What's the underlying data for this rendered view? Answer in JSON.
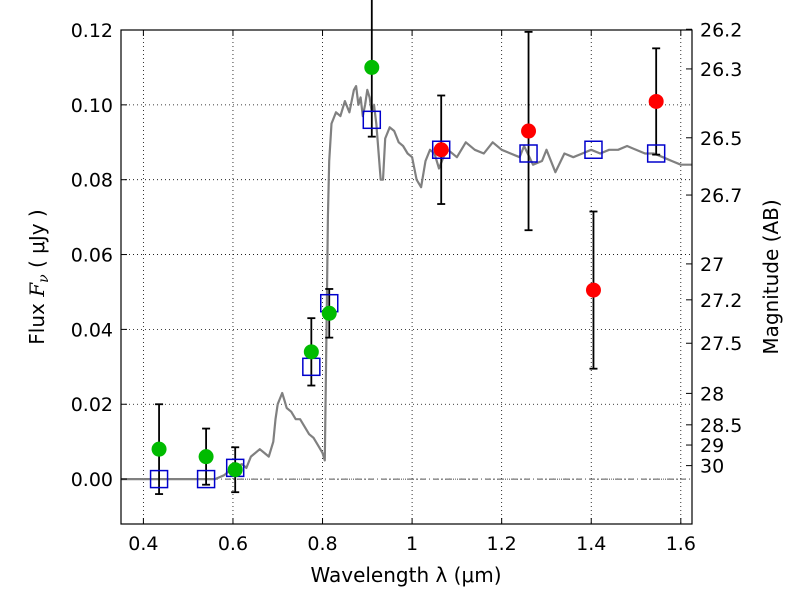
{
  "chart_data": {
    "type": "scatter",
    "xlabel": "Wavelength  λ (μm)",
    "ylabel_prefix": "Flux  ",
    "ylabel_symbol": "F",
    "ylabel_subscript": "ν",
    "ylabel_suffix": "  ( μJy )",
    "ylabel_right": "Magnitude (AB)",
    "xlim": [
      0.35,
      1.625
    ],
    "ylim": [
      -0.012,
      0.12
    ],
    "x_ticks": [
      0.4,
      0.6,
      0.8,
      1.0,
      1.2,
      1.4,
      1.6
    ],
    "x_tick_labels": [
      "0.4",
      "0.6",
      "0.8",
      "1",
      "1.2",
      "1.4",
      "1.6"
    ],
    "y_ticks": [
      0.0,
      0.02,
      0.04,
      0.06,
      0.08,
      0.1,
      0.12
    ],
    "y_tick_labels": [
      "0.00",
      "0.02",
      "0.04",
      "0.06",
      "0.08",
      "0.10",
      "0.12"
    ],
    "right_ticks": [
      {
        "label": "26.2",
        "flux": 0.1202
      },
      {
        "label": "26.3",
        "flux": 0.1096
      },
      {
        "label": "26.5",
        "flux": 0.0912
      },
      {
        "label": "26.7",
        "flux": 0.0759
      },
      {
        "label": "27",
        "flux": 0.0575
      },
      {
        "label": "27.2",
        "flux": 0.0479
      },
      {
        "label": "27.5",
        "flux": 0.0363
      },
      {
        "label": "28",
        "flux": 0.0229
      },
      {
        "label": "28.5",
        "flux": 0.0145
      },
      {
        "label": "29",
        "flux": 0.0091
      },
      {
        "label": "30",
        "flux": 0.0036
      }
    ],
    "grid": true,
    "zero_line": true,
    "series": [
      {
        "name": "model-spectrum",
        "kind": "line",
        "color": "#808080",
        "x": [
          0.35,
          0.56,
          0.58,
          0.6,
          0.62,
          0.63,
          0.64,
          0.66,
          0.67,
          0.68,
          0.69,
          0.695,
          0.7,
          0.71,
          0.715,
          0.72,
          0.73,
          0.74,
          0.75,
          0.76,
          0.77,
          0.78,
          0.79,
          0.8,
          0.805,
          0.81,
          0.812,
          0.815,
          0.82,
          0.83,
          0.84,
          0.85,
          0.86,
          0.87,
          0.875,
          0.88,
          0.885,
          0.89,
          0.895,
          0.9,
          0.905,
          0.91,
          0.915,
          0.92,
          0.93,
          0.935,
          0.94,
          0.95,
          0.96,
          0.97,
          0.98,
          0.99,
          1.0,
          1.01,
          1.02,
          1.03,
          1.04,
          1.05,
          1.06,
          1.07,
          1.08,
          1.1,
          1.12,
          1.14,
          1.16,
          1.18,
          1.2,
          1.22,
          1.24,
          1.25,
          1.27,
          1.29,
          1.3,
          1.32,
          1.34,
          1.36,
          1.38,
          1.4,
          1.42,
          1.44,
          1.46,
          1.48,
          1.5,
          1.52,
          1.54,
          1.56,
          1.58,
          1.6,
          1.625
        ],
        "y": [
          0.0,
          0.0,
          0.001,
          0.003,
          0.004,
          0.003,
          0.006,
          0.008,
          0.007,
          0.006,
          0.01,
          0.016,
          0.02,
          0.023,
          0.021,
          0.019,
          0.018,
          0.016,
          0.016,
          0.014,
          0.012,
          0.011,
          0.009,
          0.007,
          0.005,
          0.05,
          0.07,
          0.085,
          0.095,
          0.098,
          0.097,
          0.101,
          0.098,
          0.104,
          0.105,
          0.1,
          0.102,
          0.097,
          0.1,
          0.104,
          0.102,
          0.098,
          0.1,
          0.095,
          0.08,
          0.08,
          0.091,
          0.094,
          0.093,
          0.09,
          0.089,
          0.087,
          0.086,
          0.08,
          0.078,
          0.085,
          0.088,
          0.087,
          0.083,
          0.086,
          0.088,
          0.086,
          0.09,
          0.088,
          0.087,
          0.09,
          0.088,
          0.087,
          0.086,
          0.089,
          0.084,
          0.085,
          0.088,
          0.082,
          0.087,
          0.086,
          0.087,
          0.088,
          0.087,
          0.088,
          0.088,
          0.089,
          0.088,
          0.087,
          0.087,
          0.086,
          0.085,
          0.084,
          0.084
        ]
      },
      {
        "name": "green-photometry",
        "kind": "scatter",
        "color": "#00bb00",
        "points": [
          {
            "x": 0.435,
            "y": 0.008,
            "err": 0.012
          },
          {
            "x": 0.54,
            "y": 0.006,
            "err": 0.0075
          },
          {
            "x": 0.605,
            "y": 0.0025,
            "err": 0.006
          },
          {
            "x": 0.775,
            "y": 0.034,
            "err": 0.009
          },
          {
            "x": 0.815,
            "y": 0.0443,
            "err": 0.0065
          },
          {
            "x": 0.91,
            "y": 0.11,
            "err": 0.0185
          }
        ]
      },
      {
        "name": "red-photometry",
        "kind": "scatter",
        "color": "#ff0000",
        "points": [
          {
            "x": 1.065,
            "y": 0.088,
            "err": 0.0145
          },
          {
            "x": 1.26,
            "y": 0.093,
            "err": 0.0265
          },
          {
            "x": 1.405,
            "y": 0.0505,
            "err": 0.021
          },
          {
            "x": 1.545,
            "y": 0.1009,
            "err": 0.0142
          }
        ]
      },
      {
        "name": "blue-model-squares",
        "kind": "scatter",
        "color": "#0000cc",
        "points": [
          {
            "x": 0.435,
            "y": 0.0
          },
          {
            "x": 0.54,
            "y": 0.0
          },
          {
            "x": 0.605,
            "y": 0.003
          },
          {
            "x": 0.775,
            "y": 0.03
          },
          {
            "x": 0.815,
            "y": 0.047
          },
          {
            "x": 0.91,
            "y": 0.096
          },
          {
            "x": 1.065,
            "y": 0.088
          },
          {
            "x": 1.26,
            "y": 0.087
          },
          {
            "x": 1.405,
            "y": 0.088
          },
          {
            "x": 1.545,
            "y": 0.087
          }
        ]
      }
    ]
  }
}
